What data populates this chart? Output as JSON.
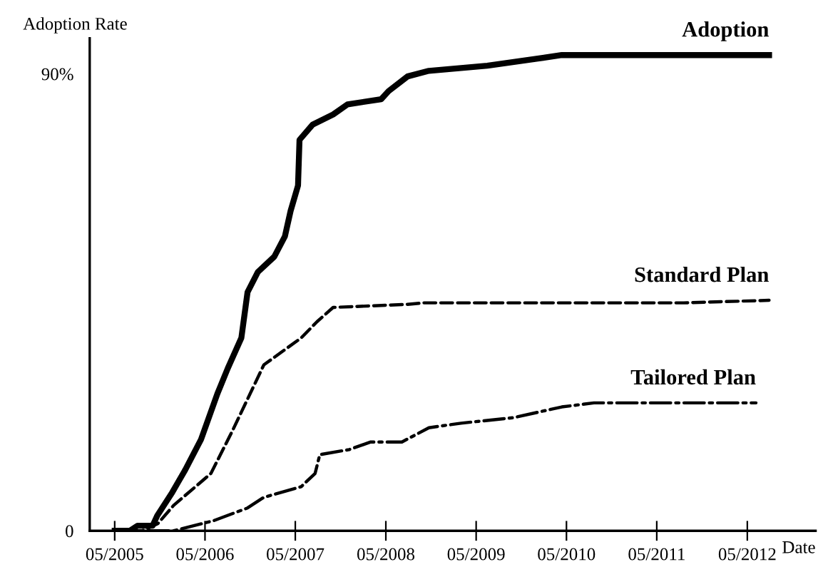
{
  "chart_data": {
    "type": "line",
    "ylabel": "Adoption Rate",
    "xlabel": "Date",
    "xlim": [
      "2005-01-20",
      "2013-02-01"
    ],
    "ylim": [
      0,
      97
    ],
    "xticks": [
      {
        "value": "2005-05",
        "label": "05/2005"
      },
      {
        "value": "2006-05",
        "label": "05/2006"
      },
      {
        "value": "2007-05",
        "label": "05/2007"
      },
      {
        "value": "2008-05",
        "label": "05/2008"
      },
      {
        "value": "2009-05",
        "label": "05/2009"
      },
      {
        "value": "2010-05",
        "label": "05/2010"
      },
      {
        "value": "2011-05",
        "label": "05/2011"
      },
      {
        "value": "2012-05",
        "label": "05/2012"
      }
    ],
    "yticks": [
      0,
      {
        "value": 90,
        "label": "90%"
      }
    ],
    "grid": false,
    "legend": false,
    "series": [
      {
        "name": "Adoption",
        "color": "#000000",
        "line_style": "solid",
        "x": [
          "2005-05-01",
          "2005-07-01",
          "2005-08-01",
          "2005-10-01",
          "2005-10-20",
          "2005-12-20",
          "2006-02-10",
          "2006-04-15",
          "2006-06-20",
          "2006-08-01",
          "2006-09-25",
          "2006-10-20",
          "2006-12-01",
          "2007-02-05",
          "2007-03-20",
          "2007-04-12",
          "2007-05-12",
          "2007-05-18",
          "2007-07-10",
          "2007-10-01",
          "2007-11-28",
          "2008-04-12",
          "2008-05-12",
          "2008-07-28",
          "2008-10-22",
          "2009-06-15",
          "2010-01-05",
          "2010-04-12",
          "2012-07-28"
        ],
        "values": [
          0,
          0,
          1,
          1,
          3,
          7.6,
          12,
          18,
          27,
          32,
          38,
          47,
          51,
          54,
          58,
          63,
          68,
          77,
          80,
          82,
          84,
          85,
          86.6,
          89.5,
          90.6,
          91.6,
          93,
          93.7,
          93.7
        ]
      },
      {
        "name": "Standard Plan",
        "color": "#000000",
        "line_style": "dashed",
        "x": [
          "2005-05-01",
          "2005-08-20",
          "2005-10-22",
          "2005-12-25",
          "2006-05-25",
          "2006-08-20",
          "2006-12-25",
          "2007-05-25",
          "2007-07-28",
          "2007-10-01",
          "2008-07-28",
          "2008-10-01",
          "2011-08-18",
          "2012-07-28"
        ],
        "values": [
          0,
          0,
          1.4,
          5,
          11.3,
          19.7,
          32.7,
          38,
          41.2,
          44,
          44.6,
          44.9,
          44.9,
          45.4
        ]
      },
      {
        "name": "Tailored Plan",
        "color": "#000000",
        "line_style": "dashdot",
        "x": [
          "2005-05-01",
          "2005-12-25",
          "2006-06-05",
          "2006-10-20",
          "2006-12-25",
          "2007-05-25",
          "2007-07-20",
          "2007-08-08",
          "2007-12-05",
          "2008-03-01",
          "2008-07-05",
          "2008-10-22",
          "2009-03-01",
          "2009-09-30",
          "2010-04-12",
          "2010-08-20",
          "2012-06-05"
        ],
        "values": [
          0,
          0,
          2,
          4.5,
          6.6,
          8.7,
          11.3,
          15,
          16,
          17.5,
          17.5,
          20.3,
          21.2,
          22.3,
          24.4,
          25.2,
          25.2
        ]
      }
    ]
  }
}
